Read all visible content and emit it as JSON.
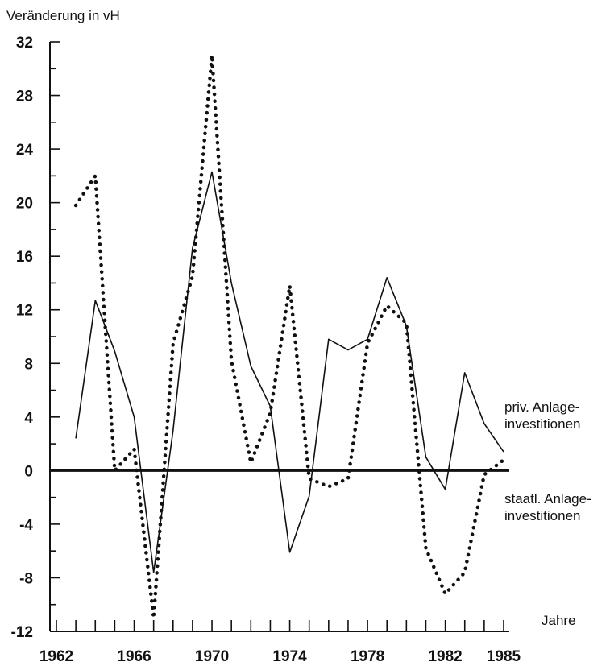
{
  "chart_data": {
    "type": "line",
    "title": "Veränderung in vH",
    "xlabel": "Jahre",
    "ylabel": "",
    "xlim": [
      1962,
      1985
    ],
    "ylim": [
      -12,
      32
    ],
    "y_ticks": [
      32,
      28,
      24,
      20,
      16,
      12,
      8,
      4,
      0,
      -4,
      -8,
      -12
    ],
    "y_tick_labels": [
      "32",
      "28",
      "24",
      "20",
      "16",
      "12",
      "8",
      "4",
      "0",
      "-4",
      "-8",
      "-12"
    ],
    "x_tick_labels": [
      {
        "x": 1962,
        "label": "1962"
      },
      {
        "x": 1966,
        "label": "1966"
      },
      {
        "x": 1970,
        "label": "1970"
      },
      {
        "x": 1974,
        "label": "1974"
      },
      {
        "x": 1978,
        "label": "1978"
      },
      {
        "x": 1982,
        "label": "1982"
      },
      {
        "x": 1985,
        "label": "1985"
      }
    ],
    "grid": false,
    "series": [
      {
        "name": "priv. Anlage-\ninvestitionen",
        "label_lines": [
          "priv. Anlage-",
          "investitionen"
        ],
        "style": "solid",
        "x": [
          1963,
          1964,
          1965,
          1966,
          1967,
          1968,
          1969,
          1970,
          1971,
          1972,
          1973,
          1974,
          1975,
          1976,
          1977,
          1978,
          1979,
          1980,
          1981,
          1982,
          1983,
          1984,
          1985
        ],
        "values": [
          2.4,
          12.7,
          8.9,
          4.0,
          -7.6,
          3.0,
          16.6,
          22.3,
          14.0,
          7.8,
          4.8,
          -6.1,
          -1.9,
          9.8,
          9.0,
          9.8,
          14.4,
          10.8,
          1.0,
          -1.4,
          7.3,
          3.5,
          1.4
        ]
      },
      {
        "name": "staatl. Anlage-\ninvestitionen",
        "label_lines": [
          "staatl. Anlage-",
          "investitionen"
        ],
        "style": "dotted",
        "x": [
          1963,
          1964,
          1965,
          1966,
          1967,
          1968,
          1969,
          1970,
          1971,
          1972,
          1973,
          1974,
          1975,
          1976,
          1977,
          1978,
          1979,
          1980,
          1981,
          1982,
          1983,
          1984,
          1985
        ],
        "values": [
          19.8,
          22.0,
          0.0,
          1.6,
          -11.0,
          9.5,
          14.5,
          31.0,
          8.2,
          0.6,
          4.3,
          13.8,
          -0.6,
          -1.2,
          -0.6,
          9.5,
          12.3,
          11.0,
          -5.8,
          -9.2,
          -7.6,
          -0.3,
          0.8
        ]
      }
    ]
  }
}
